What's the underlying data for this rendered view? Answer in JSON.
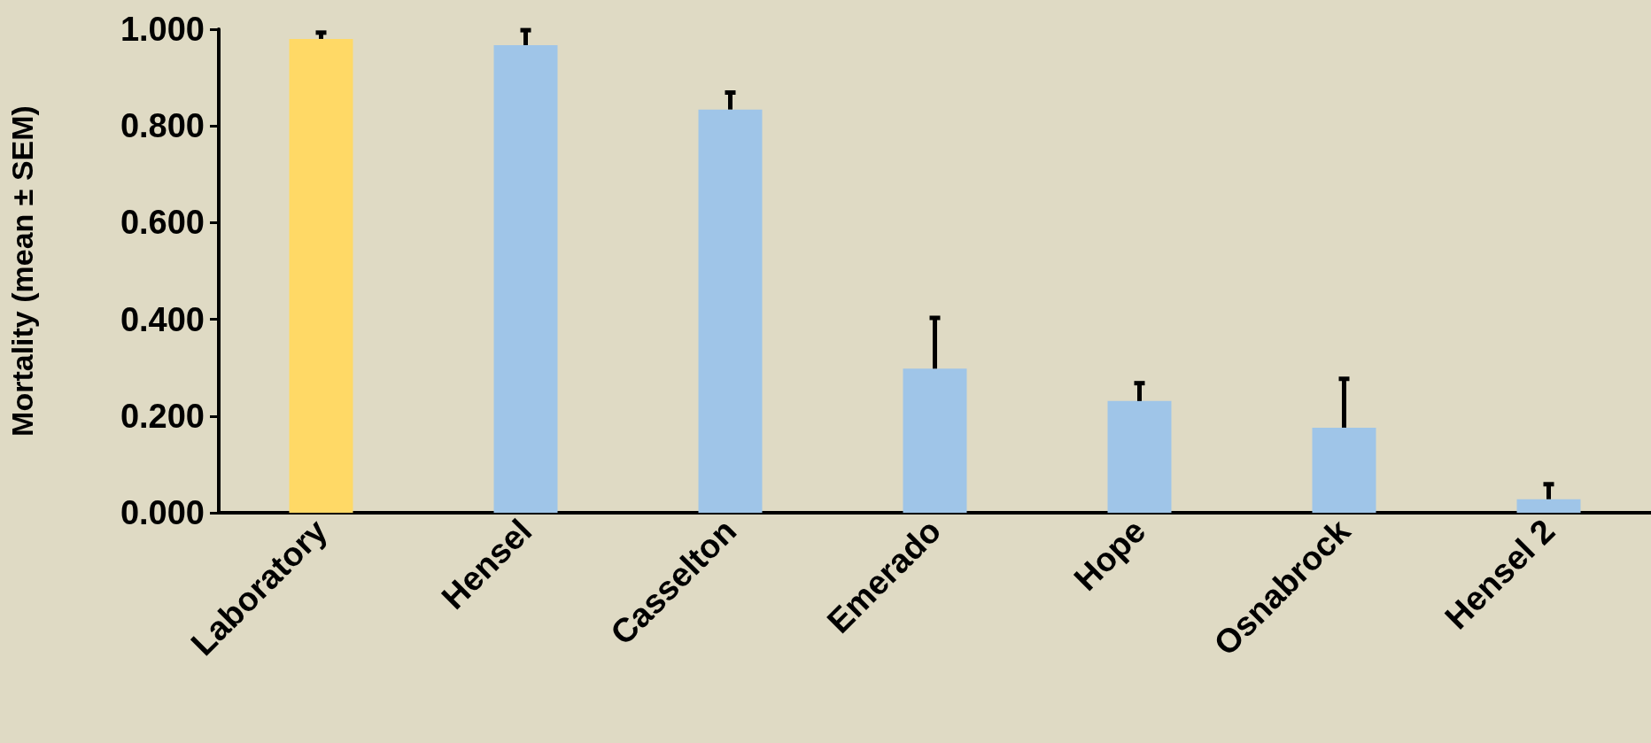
{
  "chart_data": {
    "type": "bar",
    "ylabel": "Mortality (mean ± SEM)",
    "categories": [
      "Laboratory",
      "Hensel",
      "Casselton",
      "Emerado",
      "Hope",
      "Osnabrock",
      "Hensel 2"
    ],
    "values": [
      0.98,
      0.967,
      0.834,
      0.298,
      0.231,
      0.176,
      0.028
    ],
    "colors": [
      "#ffd966",
      "#9fc5e8",
      "#9fc5e8",
      "#9fc5e8",
      "#9fc5e8",
      "#9fc5e8",
      "#9fc5e8"
    ],
    "errors": [
      [
        0.98,
        0.993
      ],
      [
        0.967,
        0.998
      ],
      [
        0.834,
        0.869
      ],
      [
        0.298,
        0.403
      ],
      [
        0.231,
        0.268
      ],
      [
        0.176,
        0.277
      ],
      [
        0.028,
        0.059
      ]
    ],
    "ylim": [
      0,
      1
    ],
    "yticks": [
      {
        "value": 0,
        "label": "0.000"
      },
      {
        "value": 0.2,
        "label": "0.200"
      },
      {
        "value": 0.4,
        "label": "0.400"
      },
      {
        "value": 0.6,
        "label": "0.600"
      },
      {
        "value": 0.8,
        "label": "0.800"
      },
      {
        "value": 1,
        "label": "1.000"
      }
    ],
    "grid": false
  }
}
